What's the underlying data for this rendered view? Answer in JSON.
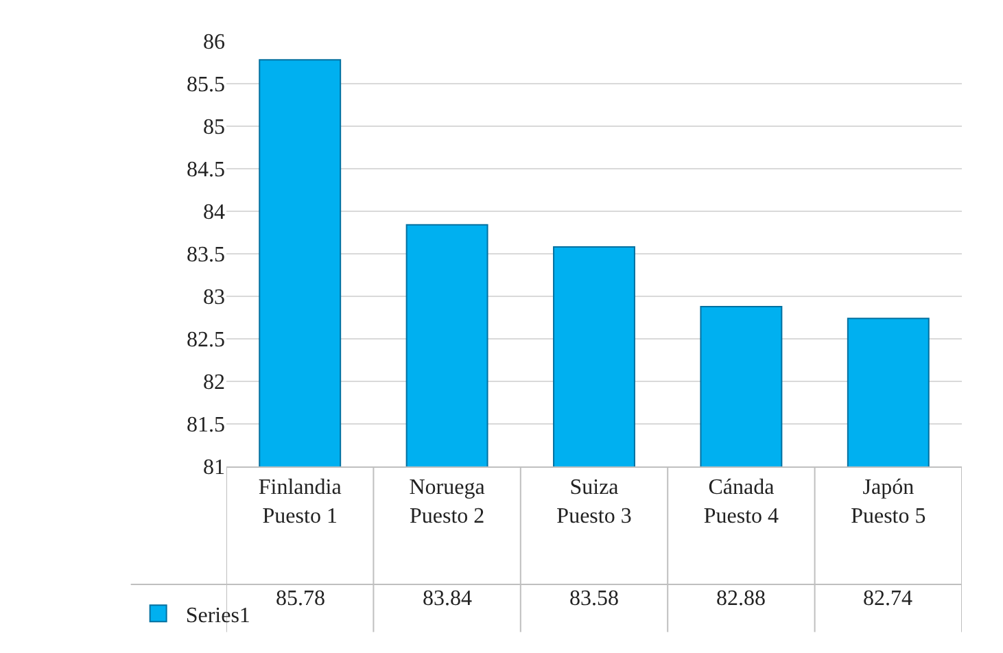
{
  "chart_data": {
    "type": "bar",
    "categories": [
      "Finlandia Puesto 1",
      "Noruega Puesto 2",
      "Suiza Puesto 3",
      "Cánada Puesto 4",
      "Japón Puesto 5"
    ],
    "series": [
      {
        "name": "Series1",
        "color": "#00b0f0",
        "values": [
          85.78,
          83.84,
          83.58,
          82.88,
          82.74
        ]
      }
    ],
    "ylim": [
      81,
      86
    ],
    "yticks": [
      81,
      81.5,
      82,
      82.5,
      83,
      83.5,
      84,
      84.5,
      85,
      85.5,
      86
    ],
    "grid": "y",
    "legend": "bottom left",
    "data_labels": true
  }
}
